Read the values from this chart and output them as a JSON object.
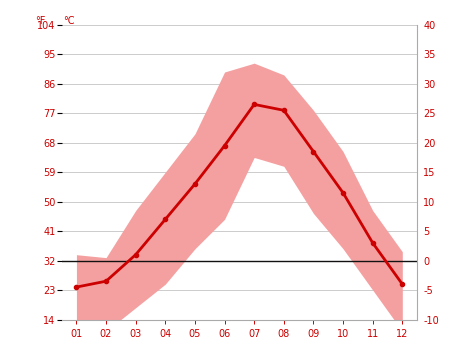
{
  "months": [
    1,
    2,
    3,
    4,
    5,
    6,
    7,
    8,
    9,
    10,
    11,
    12
  ],
  "month_labels": [
    "01",
    "02",
    "03",
    "04",
    "05",
    "06",
    "07",
    "08",
    "09",
    "10",
    "11",
    "12"
  ],
  "mean_temp_c": [
    -4.5,
    -3.5,
    1.0,
    7.0,
    13.0,
    19.5,
    26.5,
    25.5,
    18.5,
    11.5,
    3.0,
    -4.0
  ],
  "band_upper_c": [
    1.0,
    0.5,
    8.5,
    15.0,
    21.5,
    32.0,
    33.5,
    31.5,
    25.5,
    18.5,
    8.5,
    1.5
  ],
  "band_lower_c": [
    -12.5,
    -12.0,
    -8.0,
    -4.0,
    2.0,
    7.0,
    17.5,
    16.0,
    8.0,
    2.0,
    -5.0,
    -12.0
  ],
  "ylim_c": [
    -10,
    40
  ],
  "yticks_c": [
    -10,
    -5,
    0,
    5,
    10,
    15,
    20,
    25,
    30,
    35,
    40
  ],
  "yticks_f": [
    14,
    23,
    32,
    41,
    50,
    59,
    68,
    77,
    86,
    95,
    104
  ],
  "line_color": "#cc0000",
  "band_color": "#f5a0a0",
  "zero_line_color": "#111111",
  "grid_color": "#cccccc",
  "label_color": "#cc0000",
  "tick_label_color": "#cc0000",
  "axis_label_color": "#cc0000",
  "bg_color": "#ffffff",
  "right_spine_color": "#aaaaaa",
  "bottom_spine_color": "#aaaaaa"
}
